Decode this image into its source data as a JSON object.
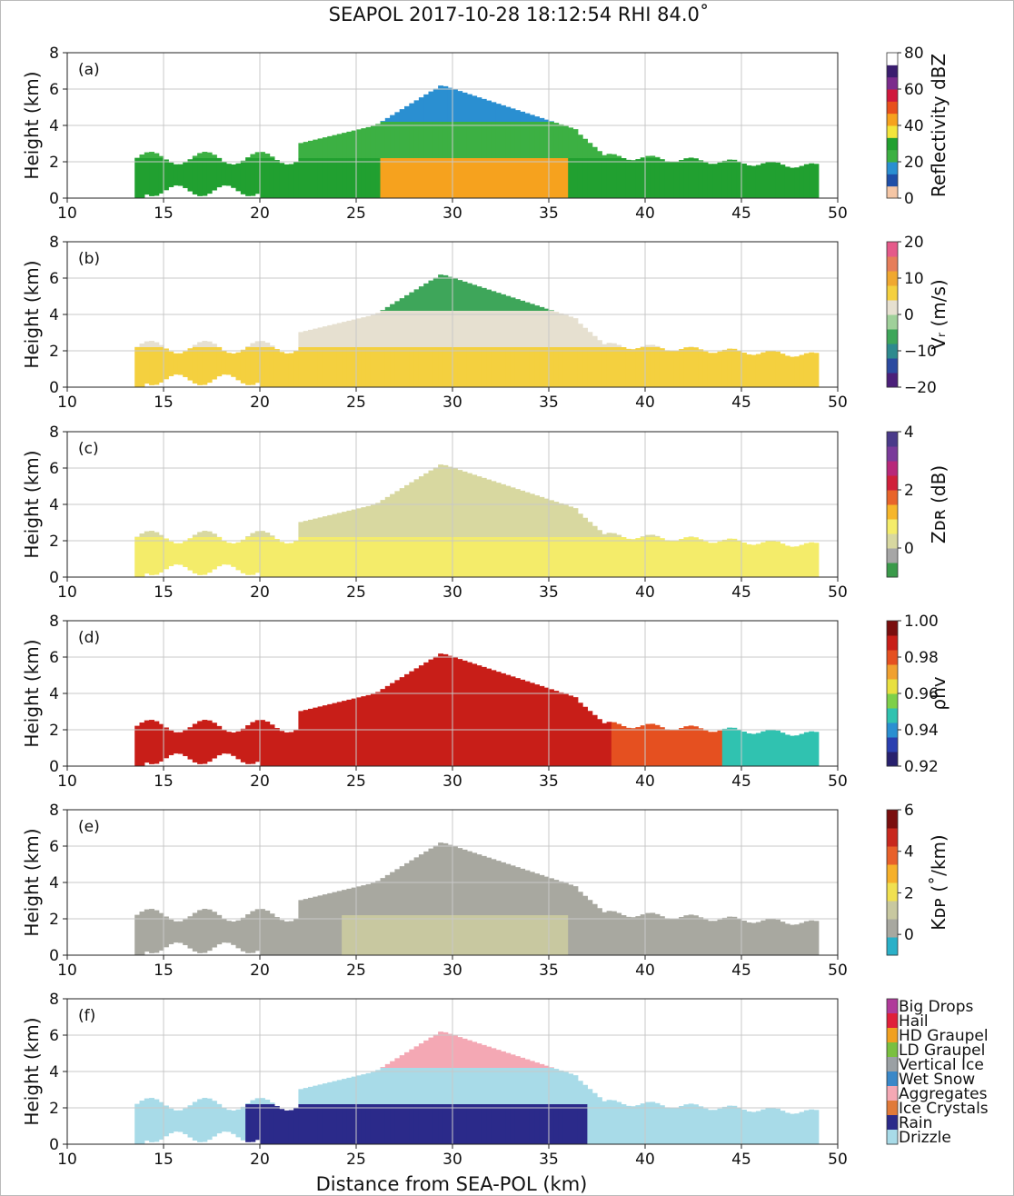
{
  "figure": {
    "title": "SEAPOL 2017-10-28 18:12:54 RHI 84.0˚",
    "xlabel": "Distance from SEA-POL (km)"
  },
  "chart_data": [
    {
      "type": "heatmap",
      "panel_label": "(a)",
      "field": "reflectivity",
      "ylabel": "Height (km)",
      "xlim": [
        10,
        50
      ],
      "ylim": [
        0,
        8
      ],
      "xticks": [
        10,
        15,
        20,
        25,
        30,
        35,
        40,
        45,
        50
      ],
      "yticks": [
        0,
        2,
        4,
        6,
        8
      ],
      "grid": true,
      "colorbar": {
        "label": "Reflectivity dBZ",
        "ticks": [
          "0",
          "20",
          "40",
          "60",
          "80"
        ],
        "range": [
          0,
          80
        ],
        "colors": [
          "#f5c6a5",
          "#1f4fa8",
          "#2a8fd1",
          "#3cb043",
          "#21a030",
          "#f3e53c",
          "#f6a21e",
          "#e8501c",
          "#d0173c",
          "#7b2b8c",
          "#3a1d6e",
          "#ffffff"
        ]
      }
    },
    {
      "type": "heatmap",
      "panel_label": "(b)",
      "field": "radial_velocity",
      "ylabel": "Height (km)",
      "xlim": [
        10,
        50
      ],
      "ylim": [
        0,
        8
      ],
      "xticks": [
        10,
        15,
        20,
        25,
        30,
        35,
        40,
        45,
        50
      ],
      "yticks": [
        0,
        2,
        4,
        6,
        8
      ],
      "grid": true,
      "colorbar": {
        "label": "Vᵣ (m/s)",
        "ticks": [
          "−20",
          "−10",
          "0",
          "10",
          "20"
        ],
        "range": [
          -20,
          20
        ],
        "colors": [
          "#4b1f7a",
          "#2b4aa0",
          "#2e8a8e",
          "#3ea65a",
          "#9fd09a",
          "#e6e0d0",
          "#f4d03f",
          "#f0a830",
          "#e67e5a",
          "#e55a8a"
        ]
      }
    },
    {
      "type": "heatmap",
      "panel_label": "(c)",
      "field": "differential_reflectivity",
      "ylabel": "Height (km)",
      "xlim": [
        10,
        50
      ],
      "ylim": [
        0,
        8
      ],
      "xticks": [
        10,
        15,
        20,
        25,
        30,
        35,
        40,
        45,
        50
      ],
      "yticks": [
        0,
        2,
        4,
        6,
        8
      ],
      "grid": true,
      "colorbar": {
        "label": "Zᴅʀ (dB)",
        "ticks": [
          "0",
          "2",
          "4"
        ],
        "range": [
          -1,
          4
        ],
        "colors": [
          "#3a9a4a",
          "#a6a6a6",
          "#d8d8a0",
          "#f4ec6a",
          "#f6b62a",
          "#e8642a",
          "#d0203a",
          "#b8287a",
          "#7a3a9a",
          "#4a3a8a"
        ]
      }
    },
    {
      "type": "heatmap",
      "panel_label": "(d)",
      "field": "correlation_coefficient",
      "ylabel": "Height (km)",
      "xlim": [
        10,
        50
      ],
      "ylim": [
        0,
        8
      ],
      "xticks": [
        10,
        15,
        20,
        25,
        30,
        35,
        40,
        45,
        50
      ],
      "yticks": [
        0,
        2,
        4,
        6,
        8
      ],
      "grid": true,
      "colorbar": {
        "label": "ρhv",
        "ticks": [
          "0.92",
          "0.94",
          "0.96",
          "0.98",
          "1.00"
        ],
        "range": [
          0.92,
          1.0
        ],
        "colors": [
          "#27206e",
          "#2a3fb0",
          "#2a8fd1",
          "#30c2b0",
          "#7ed04a",
          "#e8e040",
          "#f0a030",
          "#e55020",
          "#c81e18",
          "#7a0e0e"
        ]
      }
    },
    {
      "type": "heatmap",
      "panel_label": "(e)",
      "field": "specific_differential_phase",
      "ylabel": "Height (km)",
      "xlim": [
        10,
        50
      ],
      "ylim": [
        0,
        8
      ],
      "xticks": [
        10,
        15,
        20,
        25,
        30,
        35,
        40,
        45,
        50
      ],
      "yticks": [
        0,
        2,
        4,
        6,
        8
      ],
      "grid": true,
      "colorbar": {
        "label": "Kᴅᴘ (˚/km)",
        "ticks": [
          "0",
          "2",
          "4",
          "6"
        ],
        "range": [
          -1,
          6
        ],
        "colors": [
          "#2ab0c8",
          "#a8a8a0",
          "#c8c8a0",
          "#f0e050",
          "#f6b02a",
          "#e8602a",
          "#c8281e",
          "#7a0e0e"
        ]
      }
    },
    {
      "type": "heatmap",
      "panel_label": "(f)",
      "field": "hydrometeor_classification",
      "ylabel": "Height (km)",
      "xlim": [
        10,
        50
      ],
      "ylim": [
        0,
        8
      ],
      "xticks": [
        10,
        15,
        20,
        25,
        30,
        35,
        40,
        45,
        50
      ],
      "yticks": [
        0,
        2,
        4,
        6,
        8
      ],
      "grid": true,
      "classes": [
        {
          "name": "Big Drops",
          "color": "#b03a9a"
        },
        {
          "name": "Hail",
          "color": "#e0203a"
        },
        {
          "name": "HD Graupel",
          "color": "#f0a020"
        },
        {
          "name": "LD Graupel",
          "color": "#7ac040"
        },
        {
          "name": "Vertical Ice",
          "color": "#9aa0a4"
        },
        {
          "name": "Wet Snow",
          "color": "#3a88c8"
        },
        {
          "name": "Aggregates",
          "color": "#f4a8b4"
        },
        {
          "name": "Ice Crystals",
          "color": "#e07a3a"
        },
        {
          "name": "Rain",
          "color": "#2b2a8a"
        },
        {
          "name": "Drizzle",
          "color": "#a8dbe8"
        }
      ]
    }
  ]
}
